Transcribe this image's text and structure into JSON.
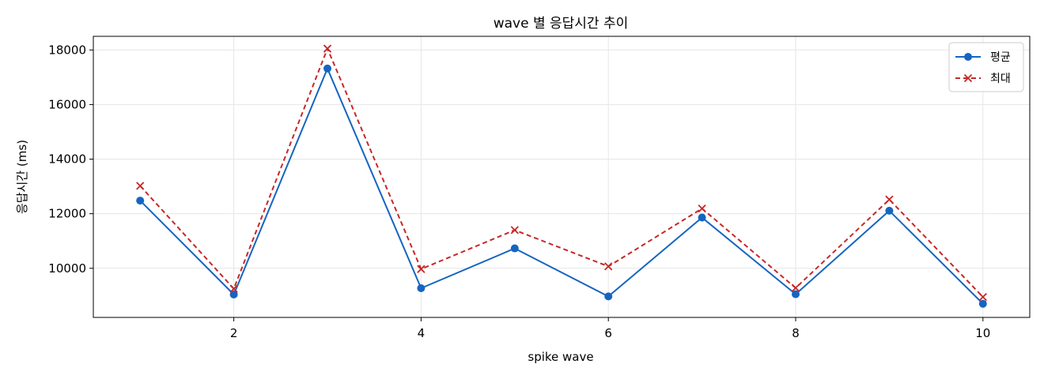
{
  "chart_data": {
    "type": "line",
    "title": "wave 별 응답시간 추이",
    "xlabel": "spike wave",
    "ylabel": "응답시간 (ms)",
    "x": [
      1,
      2,
      3,
      4,
      5,
      6,
      7,
      8,
      9,
      10
    ],
    "xlim": [
      0.5,
      10.5
    ],
    "ylim": [
      8200,
      18500
    ],
    "xticks": [
      2,
      4,
      6,
      8,
      10
    ],
    "yticks": [
      10000,
      12000,
      14000,
      16000,
      18000
    ],
    "grid": true,
    "legend_position": "top-right",
    "series": [
      {
        "name": "평균",
        "color": "#1565c0",
        "line_style": "solid",
        "marker": "circle",
        "values": [
          12480,
          9040,
          17320,
          9270,
          10730,
          8970,
          11860,
          9050,
          12110,
          8700
        ]
      },
      {
        "name": "최대",
        "color": "#c62828",
        "line_style": "dashed",
        "marker": "x",
        "values": [
          13020,
          9250,
          18050,
          9970,
          11400,
          10070,
          12190,
          9280,
          12520,
          8950
        ]
      }
    ]
  }
}
